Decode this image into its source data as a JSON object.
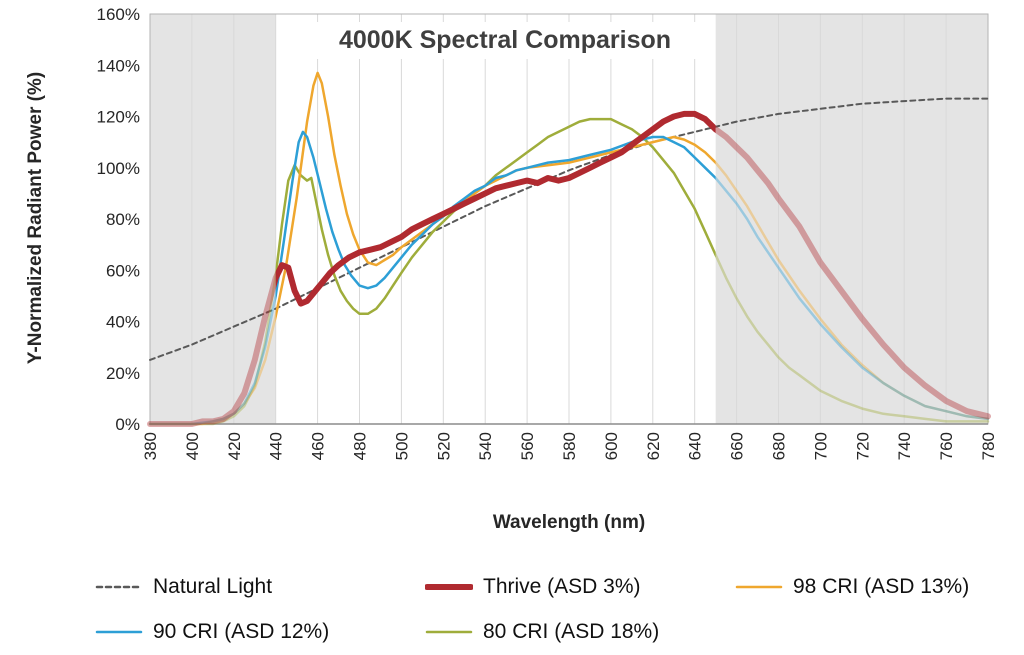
{
  "chart_data": {
    "type": "line",
    "title": "4000K Spectral Comparison",
    "xlabel": "Wavelength (nm)",
    "ylabel": "Y-Normalized Radiant Power (%)",
    "xlim": [
      380,
      780
    ],
    "ylim": [
      0,
      160
    ],
    "x_ticks": [
      380,
      400,
      420,
      440,
      460,
      480,
      500,
      520,
      540,
      560,
      580,
      600,
      620,
      640,
      660,
      680,
      700,
      720,
      740,
      760,
      780
    ],
    "y_ticks": [
      "0%",
      "20%",
      "40%",
      "60%",
      "80%",
      "100%",
      "120%",
      "140%",
      "160%"
    ],
    "grid": "vertical-only",
    "shaded_regions_nm": [
      [
        380,
        440
      ],
      [
        650,
        780
      ]
    ],
    "shaded_region_color": "#e4e4e4",
    "faded_outside_band_opacity": 0.4,
    "legend_position": "bottom",
    "series": [
      {
        "name": "Natural Light",
        "color": "#595959",
        "style": "dashed",
        "width": 2,
        "points": [
          [
            380,
            25
          ],
          [
            400,
            31
          ],
          [
            420,
            38
          ],
          [
            440,
            45
          ],
          [
            460,
            53
          ],
          [
            480,
            61
          ],
          [
            500,
            69
          ],
          [
            520,
            77
          ],
          [
            540,
            85
          ],
          [
            560,
            92
          ],
          [
            580,
            99
          ],
          [
            600,
            105
          ],
          [
            620,
            110
          ],
          [
            640,
            114
          ],
          [
            660,
            118
          ],
          [
            680,
            121
          ],
          [
            700,
            123
          ],
          [
            720,
            125
          ],
          [
            740,
            126
          ],
          [
            760,
            127
          ],
          [
            780,
            127
          ]
        ]
      },
      {
        "name": "Thrive (ASD 3%)",
        "color": "#b02a30",
        "style": "solid",
        "width": 6,
        "points": [
          [
            380,
            0
          ],
          [
            395,
            0
          ],
          [
            400,
            0
          ],
          [
            405,
            1
          ],
          [
            410,
            1
          ],
          [
            415,
            2
          ],
          [
            420,
            5
          ],
          [
            425,
            12
          ],
          [
            430,
            25
          ],
          [
            435,
            42
          ],
          [
            440,
            57
          ],
          [
            443,
            62
          ],
          [
            446,
            61
          ],
          [
            449,
            52
          ],
          [
            452,
            47
          ],
          [
            455,
            48
          ],
          [
            458,
            51
          ],
          [
            462,
            55
          ],
          [
            466,
            59
          ],
          [
            470,
            62
          ],
          [
            475,
            65
          ],
          [
            480,
            67
          ],
          [
            485,
            68
          ],
          [
            490,
            69
          ],
          [
            495,
            71
          ],
          [
            500,
            73
          ],
          [
            505,
            76
          ],
          [
            510,
            78
          ],
          [
            515,
            80
          ],
          [
            520,
            82
          ],
          [
            525,
            84
          ],
          [
            530,
            86
          ],
          [
            535,
            88
          ],
          [
            540,
            90
          ],
          [
            545,
            92
          ],
          [
            550,
            93
          ],
          [
            555,
            94
          ],
          [
            560,
            95
          ],
          [
            565,
            94
          ],
          [
            570,
            96
          ],
          [
            575,
            95
          ],
          [
            580,
            96
          ],
          [
            585,
            98
          ],
          [
            590,
            100
          ],
          [
            595,
            102
          ],
          [
            600,
            104
          ],
          [
            605,
            106
          ],
          [
            610,
            109
          ],
          [
            615,
            112
          ],
          [
            620,
            115
          ],
          [
            625,
            118
          ],
          [
            630,
            120
          ],
          [
            635,
            121
          ],
          [
            640,
            121
          ],
          [
            645,
            119
          ],
          [
            650,
            115
          ],
          [
            655,
            112
          ],
          [
            660,
            108
          ],
          [
            665,
            104
          ],
          [
            670,
            99
          ],
          [
            675,
            94
          ],
          [
            680,
            88
          ],
          [
            690,
            77
          ],
          [
            700,
            63
          ],
          [
            710,
            52
          ],
          [
            720,
            41
          ],
          [
            730,
            31
          ],
          [
            740,
            22
          ],
          [
            750,
            15
          ],
          [
            760,
            9
          ],
          [
            770,
            5
          ],
          [
            780,
            3
          ]
        ]
      },
      {
        "name": "98 CRI (ASD 13%)",
        "color": "#efa72e",
        "style": "solid",
        "width": 2.5,
        "points": [
          [
            380,
            0
          ],
          [
            400,
            0
          ],
          [
            405,
            0
          ],
          [
            410,
            1
          ],
          [
            415,
            2
          ],
          [
            420,
            4
          ],
          [
            425,
            8
          ],
          [
            430,
            14
          ],
          [
            435,
            25
          ],
          [
            440,
            42
          ],
          [
            445,
            62
          ],
          [
            450,
            88
          ],
          [
            455,
            118
          ],
          [
            458,
            132
          ],
          [
            460,
            137
          ],
          [
            462,
            133
          ],
          [
            465,
            120
          ],
          [
            468,
            105
          ],
          [
            471,
            93
          ],
          [
            474,
            82
          ],
          [
            477,
            74
          ],
          [
            480,
            68
          ],
          [
            484,
            63
          ],
          [
            488,
            62
          ],
          [
            492,
            64
          ],
          [
            496,
            66
          ],
          [
            500,
            69
          ],
          [
            505,
            72
          ],
          [
            510,
            75
          ],
          [
            515,
            78
          ],
          [
            520,
            81
          ],
          [
            525,
            84
          ],
          [
            530,
            87
          ],
          [
            535,
            90
          ],
          [
            540,
            93
          ],
          [
            545,
            95
          ],
          [
            550,
            97
          ],
          [
            555,
            99
          ],
          [
            560,
            100
          ],
          [
            570,
            101
          ],
          [
            580,
            102
          ],
          [
            590,
            104
          ],
          [
            600,
            106
          ],
          [
            610,
            108
          ],
          [
            620,
            110
          ],
          [
            630,
            112
          ],
          [
            635,
            111
          ],
          [
            640,
            109
          ],
          [
            645,
            106
          ],
          [
            650,
            102
          ],
          [
            655,
            97
          ],
          [
            660,
            91
          ],
          [
            665,
            85
          ],
          [
            670,
            78
          ],
          [
            675,
            71
          ],
          [
            680,
            64
          ],
          [
            690,
            52
          ],
          [
            700,
            41
          ],
          [
            710,
            31
          ],
          [
            720,
            23
          ],
          [
            730,
            16
          ],
          [
            740,
            11
          ],
          [
            750,
            7
          ],
          [
            760,
            5
          ],
          [
            770,
            3
          ],
          [
            780,
            2
          ]
        ]
      },
      {
        "name": "90 CRI (ASD 12%)",
        "color": "#2d9fd6",
        "style": "solid",
        "width": 2.5,
        "points": [
          [
            380,
            0
          ],
          [
            400,
            0
          ],
          [
            410,
            1
          ],
          [
            415,
            2
          ],
          [
            420,
            4
          ],
          [
            425,
            8
          ],
          [
            430,
            16
          ],
          [
            435,
            30
          ],
          [
            440,
            50
          ],
          [
            444,
            72
          ],
          [
            448,
            95
          ],
          [
            451,
            110
          ],
          [
            453,
            114
          ],
          [
            455,
            112
          ],
          [
            458,
            104
          ],
          [
            461,
            94
          ],
          [
            464,
            84
          ],
          [
            467,
            75
          ],
          [
            470,
            68
          ],
          [
            473,
            62
          ],
          [
            476,
            58
          ],
          [
            480,
            54
          ],
          [
            484,
            53
          ],
          [
            488,
            54
          ],
          [
            492,
            57
          ],
          [
            496,
            61
          ],
          [
            500,
            65
          ],
          [
            505,
            70
          ],
          [
            510,
            74
          ],
          [
            515,
            78
          ],
          [
            520,
            81
          ],
          [
            525,
            85
          ],
          [
            530,
            88
          ],
          [
            535,
            91
          ],
          [
            540,
            93
          ],
          [
            545,
            96
          ],
          [
            550,
            97
          ],
          [
            555,
            99
          ],
          [
            560,
            100
          ],
          [
            570,
            102
          ],
          [
            580,
            103
          ],
          [
            590,
            105
          ],
          [
            600,
            107
          ],
          [
            610,
            110
          ],
          [
            620,
            112
          ],
          [
            625,
            112
          ],
          [
            630,
            110
          ],
          [
            635,
            108
          ],
          [
            640,
            104
          ],
          [
            645,
            100
          ],
          [
            650,
            96
          ],
          [
            655,
            91
          ],
          [
            660,
            86
          ],
          [
            665,
            80
          ],
          [
            670,
            73
          ],
          [
            675,
            67
          ],
          [
            680,
            61
          ],
          [
            690,
            49
          ],
          [
            700,
            39
          ],
          [
            710,
            30
          ],
          [
            720,
            22
          ],
          [
            730,
            16
          ],
          [
            740,
            11
          ],
          [
            750,
            7
          ],
          [
            760,
            5
          ],
          [
            770,
            3
          ],
          [
            780,
            2
          ]
        ]
      },
      {
        "name": "80 CRI (ASD 18%)",
        "color": "#9fad3b",
        "style": "solid",
        "width": 2.5,
        "points": [
          [
            380,
            0
          ],
          [
            405,
            0
          ],
          [
            410,
            0
          ],
          [
            415,
            1
          ],
          [
            420,
            3
          ],
          [
            425,
            7
          ],
          [
            430,
            15
          ],
          [
            435,
            32
          ],
          [
            440,
            58
          ],
          [
            443,
            78
          ],
          [
            446,
            95
          ],
          [
            449,
            101
          ],
          [
            452,
            97
          ],
          [
            455,
            95
          ],
          [
            457,
            96
          ],
          [
            459,
            88
          ],
          [
            462,
            76
          ],
          [
            465,
            66
          ],
          [
            468,
            58
          ],
          [
            471,
            52
          ],
          [
            474,
            48
          ],
          [
            477,
            45
          ],
          [
            480,
            43
          ],
          [
            484,
            43
          ],
          [
            488,
            45
          ],
          [
            492,
            49
          ],
          [
            496,
            54
          ],
          [
            500,
            59
          ],
          [
            505,
            65
          ],
          [
            510,
            70
          ],
          [
            515,
            75
          ],
          [
            520,
            79
          ],
          [
            525,
            83
          ],
          [
            530,
            86
          ],
          [
            535,
            90
          ],
          [
            540,
            93
          ],
          [
            545,
            97
          ],
          [
            550,
            100
          ],
          [
            555,
            103
          ],
          [
            560,
            106
          ],
          [
            565,
            109
          ],
          [
            570,
            112
          ],
          [
            575,
            114
          ],
          [
            580,
            116
          ],
          [
            585,
            118
          ],
          [
            590,
            119
          ],
          [
            600,
            119
          ],
          [
            605,
            117
          ],
          [
            610,
            115
          ],
          [
            615,
            112
          ],
          [
            620,
            108
          ],
          [
            625,
            103
          ],
          [
            630,
            98
          ],
          [
            635,
            91
          ],
          [
            640,
            84
          ],
          [
            645,
            75
          ],
          [
            650,
            66
          ],
          [
            655,
            57
          ],
          [
            660,
            49
          ],
          [
            665,
            42
          ],
          [
            670,
            36
          ],
          [
            675,
            31
          ],
          [
            680,
            26
          ],
          [
            685,
            22
          ],
          [
            690,
            19
          ],
          [
            700,
            13
          ],
          [
            710,
            9
          ],
          [
            720,
            6
          ],
          [
            730,
            4
          ],
          [
            740,
            3
          ],
          [
            750,
            2
          ],
          [
            760,
            1
          ],
          [
            780,
            1
          ]
        ]
      }
    ]
  }
}
